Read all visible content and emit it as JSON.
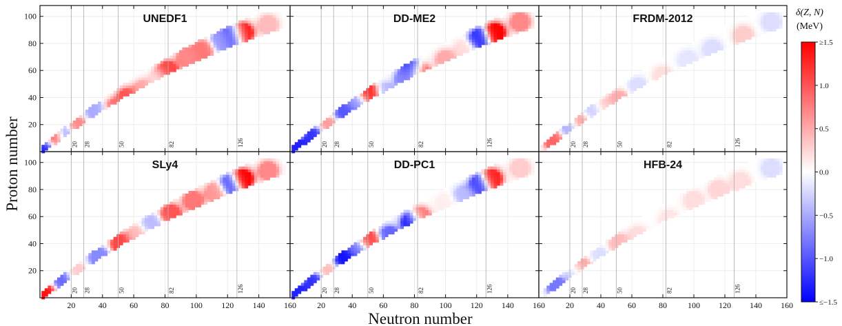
{
  "chart_data": {
    "type": "heatmap",
    "xlabel": "Neutron number",
    "ylabel": "Proton number",
    "x_ticks": [
      20,
      40,
      60,
      80,
      100,
      120,
      140,
      160
    ],
    "y_ticks": [
      20,
      40,
      60,
      80,
      100
    ],
    "xlim": [
      0,
      160
    ],
    "ylim": [
      0,
      108
    ],
    "magic_numbers": [
      20,
      28,
      50,
      82,
      126
    ],
    "magic_labels": [
      "20",
      "28",
      "50",
      "82",
      "126"
    ],
    "grid": true,
    "colorbar": {
      "title_line1": "δ(Z, N)",
      "title_line2": "(MeV)",
      "range": [
        -1.5,
        1.5
      ],
      "ticks": [
        {
          "value": 1.5,
          "label": "≥1.5"
        },
        {
          "value": 1.0,
          "label": "1.0"
        },
        {
          "value": 0.5,
          "label": "0.5"
        },
        {
          "value": 0.0,
          "label": "0.0"
        },
        {
          "value": -0.5,
          "label": "−0.5"
        },
        {
          "value": -1.0,
          "label": "−1.0"
        },
        {
          "value": -1.5,
          "label": "≤−1.5"
        }
      ],
      "colors": {
        "low": "#0000ff",
        "mid": "#ffffff",
        "high": "#ff0000"
      }
    },
    "panels": [
      {
        "title": "UNEDF1",
        "anomalies": [
          {
            "n": 4,
            "z": 2,
            "d": -1.3
          },
          {
            "n": 10,
            "z": 10,
            "d": 1.2
          },
          {
            "n": 16,
            "z": 12,
            "d": -0.8
          },
          {
            "n": 24,
            "z": 18,
            "d": 0.7
          },
          {
            "n": 36,
            "z": 30,
            "d": -0.5
          },
          {
            "n": 48,
            "z": 32,
            "d": 0.8
          },
          {
            "n": 56,
            "z": 40,
            "d": 1.0
          },
          {
            "n": 66,
            "z": 46,
            "d": 0.5
          },
          {
            "n": 76,
            "z": 54,
            "d": 0.2
          },
          {
            "n": 82,
            "z": 60,
            "d": 1.1
          },
          {
            "n": 94,
            "z": 70,
            "d": 0.7
          },
          {
            "n": 104,
            "z": 75,
            "d": 0.8
          },
          {
            "n": 116,
            "z": 82,
            "d": -0.6
          },
          {
            "n": 124,
            "z": 86,
            "d": -1.1
          },
          {
            "n": 130,
            "z": 88,
            "d": 1.4
          },
          {
            "n": 146,
            "z": 94,
            "d": 0.4
          }
        ]
      },
      {
        "title": "DD-ME2",
        "anomalies": [
          {
            "n": 5,
            "z": 2,
            "d": -1.3
          },
          {
            "n": 16,
            "z": 10,
            "d": -1.2
          },
          {
            "n": 26,
            "z": 18,
            "d": 0.6
          },
          {
            "n": 36,
            "z": 28,
            "d": -1.0
          },
          {
            "n": 44,
            "z": 36,
            "d": -0.6
          },
          {
            "n": 51,
            "z": 42,
            "d": 1.3
          },
          {
            "n": 62,
            "z": 44,
            "d": -0.4
          },
          {
            "n": 74,
            "z": 54,
            "d": -0.7
          },
          {
            "n": 79,
            "z": 60,
            "d": -1.2
          },
          {
            "n": 84,
            "z": 58,
            "d": 1.1
          },
          {
            "n": 100,
            "z": 68,
            "d": 0.5
          },
          {
            "n": 112,
            "z": 76,
            "d": 0.2
          },
          {
            "n": 122,
            "z": 84,
            "d": -1.2
          },
          {
            "n": 132,
            "z": 88,
            "d": 1.5
          },
          {
            "n": 148,
            "z": 96,
            "d": 0.7
          }
        ]
      },
      {
        "title": "FRDM-2012",
        "anomalies": [
          {
            "n": 10,
            "z": 8,
            "d": 0.9
          },
          {
            "n": 20,
            "z": 16,
            "d": -0.5
          },
          {
            "n": 28,
            "z": 20,
            "d": 0.6
          },
          {
            "n": 36,
            "z": 28,
            "d": -0.3
          },
          {
            "n": 44,
            "z": 32,
            "d": 0.3
          },
          {
            "n": 52,
            "z": 38,
            "d": 0.5
          },
          {
            "n": 64,
            "z": 48,
            "d": -0.2
          },
          {
            "n": 80,
            "z": 56,
            "d": 0.2
          },
          {
            "n": 96,
            "z": 68,
            "d": -0.15
          },
          {
            "n": 112,
            "z": 76,
            "d": -0.2
          },
          {
            "n": 132,
            "z": 86,
            "d": 0.3
          },
          {
            "n": 150,
            "z": 96,
            "d": -0.2
          }
        ]
      },
      {
        "title": "SLy4",
        "anomalies": [
          {
            "n": 4,
            "z": 4,
            "d": 1.4
          },
          {
            "n": 14,
            "z": 12,
            "d": -0.9
          },
          {
            "n": 24,
            "z": 18,
            "d": 0.3
          },
          {
            "n": 38,
            "z": 30,
            "d": -0.7
          },
          {
            "n": 52,
            "z": 40,
            "d": 1.1
          },
          {
            "n": 62,
            "z": 46,
            "d": 0.4
          },
          {
            "n": 72,
            "z": 54,
            "d": -0.4
          },
          {
            "n": 84,
            "z": 62,
            "d": 1.0
          },
          {
            "n": 98,
            "z": 72,
            "d": 0.8
          },
          {
            "n": 112,
            "z": 78,
            "d": 0.6
          },
          {
            "n": 122,
            "z": 84,
            "d": -1.0
          },
          {
            "n": 130,
            "z": 88,
            "d": 1.5
          },
          {
            "n": 146,
            "z": 94,
            "d": 0.7
          }
        ]
      },
      {
        "title": "DD-PC1",
        "anomalies": [
          {
            "n": 5,
            "z": 2,
            "d": -1.3
          },
          {
            "n": 16,
            "z": 10,
            "d": -1.2
          },
          {
            "n": 26,
            "z": 18,
            "d": 0.4
          },
          {
            "n": 36,
            "z": 28,
            "d": -1.4
          },
          {
            "n": 44,
            "z": 36,
            "d": -0.8
          },
          {
            "n": 51,
            "z": 42,
            "d": 1.1
          },
          {
            "n": 64,
            "z": 46,
            "d": -0.9
          },
          {
            "n": 78,
            "z": 56,
            "d": -1.3
          },
          {
            "n": 84,
            "z": 60,
            "d": 0.8
          },
          {
            "n": 100,
            "z": 70,
            "d": 0.1
          },
          {
            "n": 112,
            "z": 76,
            "d": -0.4
          },
          {
            "n": 122,
            "z": 84,
            "d": -1.1
          },
          {
            "n": 130,
            "z": 88,
            "d": 1.3
          },
          {
            "n": 148,
            "z": 96,
            "d": 0.3
          }
        ]
      },
      {
        "title": "HFB-24",
        "anomalies": [
          {
            "n": 12,
            "z": 8,
            "d": -0.8
          },
          {
            "n": 24,
            "z": 18,
            "d": -0.3
          },
          {
            "n": 28,
            "z": 22,
            "d": 0.6
          },
          {
            "n": 40,
            "z": 30,
            "d": -0.2
          },
          {
            "n": 52,
            "z": 40,
            "d": 0.4
          },
          {
            "n": 64,
            "z": 46,
            "d": 0.2
          },
          {
            "n": 84,
            "z": 58,
            "d": 0.15
          },
          {
            "n": 100,
            "z": 72,
            "d": 0.2
          },
          {
            "n": 116,
            "z": 80,
            "d": 0.25
          },
          {
            "n": 130,
            "z": 86,
            "d": 0.2
          },
          {
            "n": 150,
            "z": 96,
            "d": -0.2
          }
        ]
      }
    ]
  }
}
